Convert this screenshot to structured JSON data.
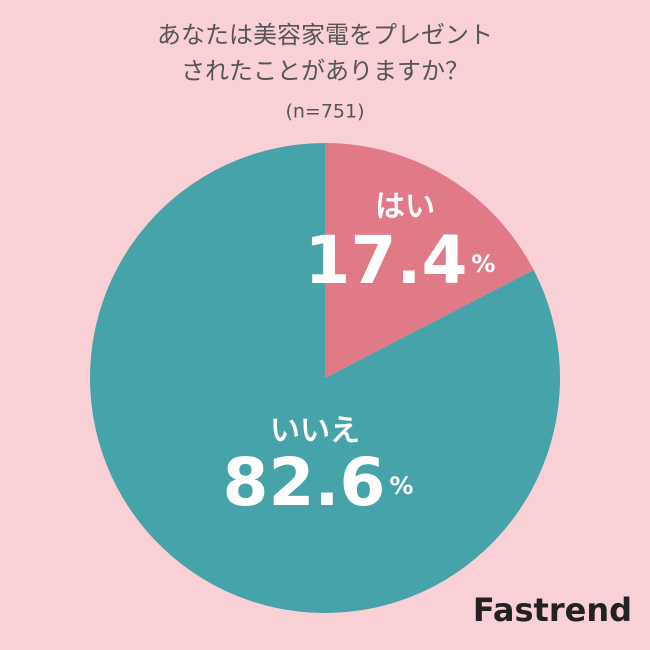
{
  "chart_data": {
    "type": "pie",
    "title": [
      "あなたは美容家電をプレゼント",
      "されたことがありますか？"
    ],
    "subtitle": "(n=751)",
    "categories": [
      "はい",
      "いいえ"
    ],
    "values": [
      17.4,
      82.6
    ],
    "unit": "%",
    "colors": [
      "#e07a87",
      "#45a3a9"
    ],
    "brand": "Fastrend"
  }
}
